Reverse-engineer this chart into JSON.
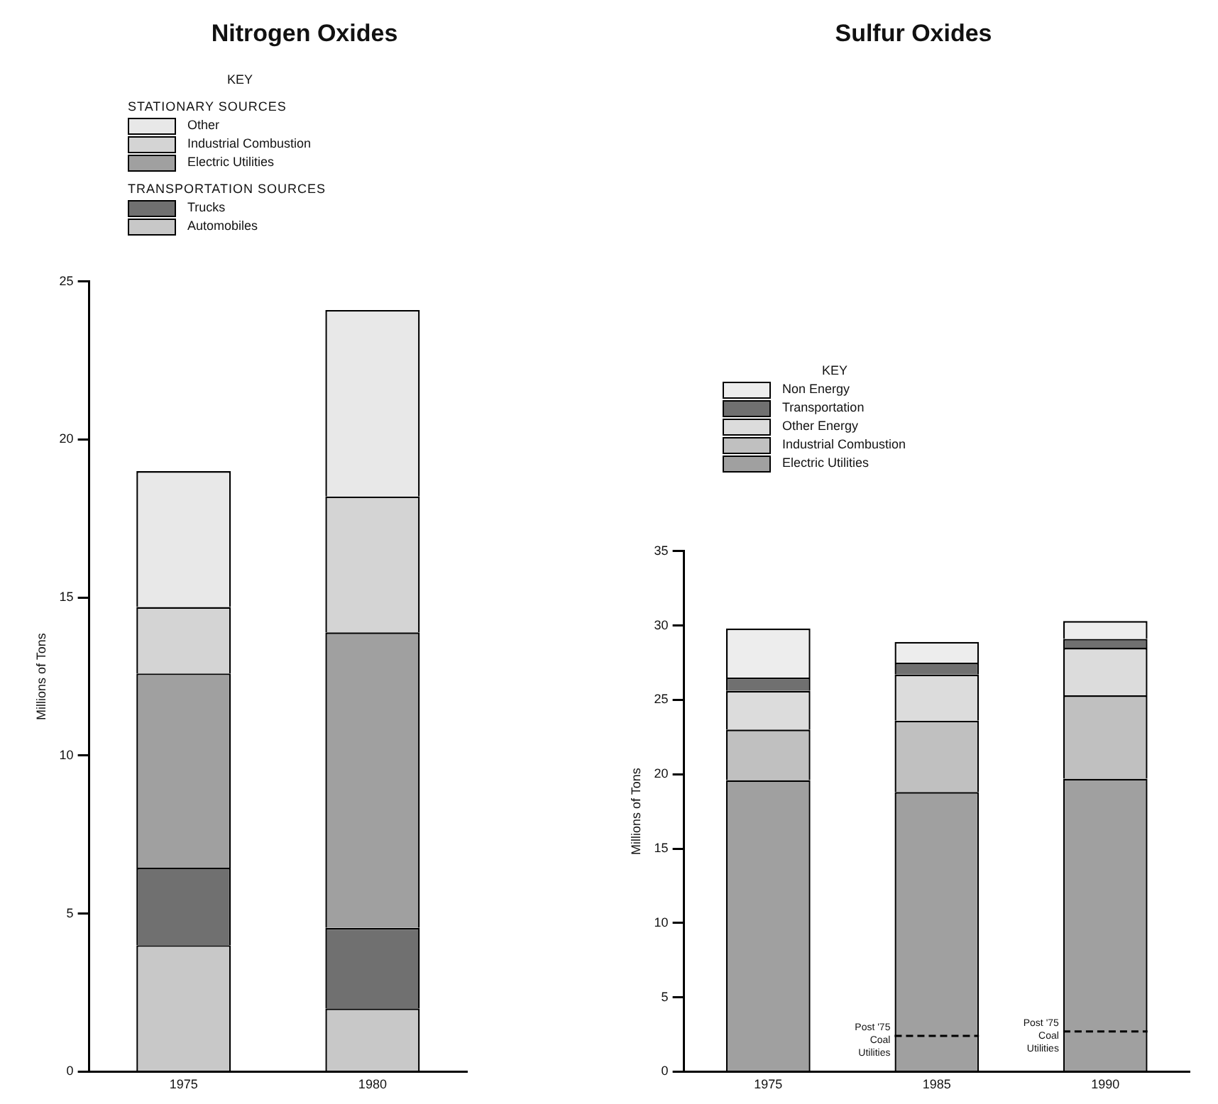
{
  "chart_data": [
    {
      "type": "bar",
      "title": "Nitrogen Oxides",
      "ylabel": "Millions of Tons",
      "legend_title": "KEY",
      "categories": [
        "1975",
        "1980"
      ],
      "stacked": true,
      "ylim": [
        0,
        25
      ],
      "yticks": [
        0,
        5,
        10,
        15,
        20,
        25
      ],
      "grid": false,
      "legend": "top left",
      "annotations": [
        "STATIONARY SOURCES",
        "TRANSPORTATION SOURCES"
      ],
      "series": [
        {
          "name": "Automobiles",
          "color": "#c8c8c8",
          "values": [
            4.0,
            2.0
          ]
        },
        {
          "name": "Trucks",
          "color": "#707070",
          "values": [
            2.45,
            2.55
          ]
        },
        {
          "name": "Electric Utilities",
          "color": "#a0a0a0",
          "values": [
            6.15,
            9.35
          ]
        },
        {
          "name": "Industrial Combustion",
          "color": "#d4d4d4",
          "values": [
            2.1,
            4.3
          ]
        },
        {
          "name": "Other",
          "color": "#e8e8e8",
          "values": [
            4.3,
            5.9
          ]
        }
      ]
    },
    {
      "type": "bar",
      "title": "Sulfur Oxides",
      "ylabel": "Millions of Tons",
      "legend_title": "KEY",
      "categories": [
        "1975",
        "1985",
        "1990"
      ],
      "stacked": true,
      "ylim": [
        0,
        35
      ],
      "yticks": [
        0,
        5,
        10,
        15,
        20,
        25,
        30,
        35
      ],
      "grid": false,
      "legend": "top left",
      "ref_lines": [
        {
          "axis": "y",
          "value": 2.4,
          "label": "Post '75 Coal Utilities",
          "line_style": "dashed"
        },
        {
          "axis": "y",
          "value": 2.7,
          "label": "Post '75 Coal Utilities",
          "line_style": "dashed"
        }
      ],
      "series": [
        {
          "name": "Electric Utilities",
          "color": "#a0a0a0",
          "values": [
            19.6,
            18.8,
            19.7
          ]
        },
        {
          "name": "Industrial Combustion",
          "color": "#c0c0c0",
          "values": [
            3.4,
            4.8,
            5.6
          ]
        },
        {
          "name": "Other Energy",
          "color": "#dcdcdc",
          "values": [
            2.6,
            3.1,
            3.2
          ]
        },
        {
          "name": "Transportation",
          "color": "#707070",
          "values": [
            0.9,
            0.8,
            0.6
          ]
        },
        {
          "name": "Non Energy",
          "color": "#ededed",
          "values": [
            3.3,
            1.4,
            1.2
          ]
        }
      ]
    }
  ]
}
